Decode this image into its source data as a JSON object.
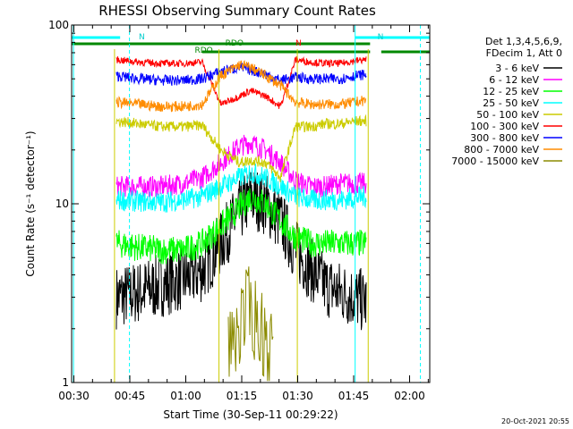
{
  "chart_data": {
    "type": "line",
    "title": "RHESSI Observing Summary Count Rates",
    "xlabel": "Start Time (30-Sep-11 00:29:22)",
    "ylabel": "Count Rate (s⁻¹ detector⁻¹)",
    "y_scale": "log",
    "ylim": [
      1,
      100
    ],
    "xlim_minutes_after_0029": [
      0,
      96
    ],
    "x_ticks": [
      {
        "label": "00:30",
        "t": 0.6
      },
      {
        "label": "00:45",
        "t": 15.6
      },
      {
        "label": "01:00",
        "t": 30.6
      },
      {
        "label": "01:15",
        "t": 45.6
      },
      {
        "label": "01:30",
        "t": 60.6
      },
      {
        "label": "01:45",
        "t": 75.6
      },
      {
        "label": "02:00",
        "t": 90.6
      }
    ],
    "y_ticks": [
      {
        "label": "1",
        "value": 1
      },
      {
        "label": "10",
        "value": 10
      },
      {
        "label": "100",
        "value": 100
      }
    ],
    "legend": {
      "header": [
        "Det 1,3,4,5,6,9,",
        "FDecim 1, Att 0"
      ],
      "position": "right"
    },
    "series": [
      {
        "name": "3 - 6 keV",
        "color": "#000000",
        "x": [
          12,
          18,
          24,
          30,
          35,
          40,
          45,
          48,
          52,
          56,
          60,
          64,
          68,
          72,
          76,
          79
        ],
        "y": [
          3,
          3.2,
          3.5,
          3.8,
          4.2,
          6,
          9,
          11,
          10,
          8,
          5.5,
          4.3,
          3.5,
          3.2,
          3,
          2.8
        ]
      },
      {
        "name": "6 - 12 keV",
        "color": "#ff00ff",
        "x": [
          12,
          18,
          24,
          30,
          35,
          40,
          45,
          48,
          52,
          56,
          60,
          64,
          68,
          72,
          76,
          79
        ],
        "y": [
          12.5,
          12.5,
          12.5,
          13,
          14,
          17,
          21,
          22,
          20,
          17,
          13.5,
          12.5,
          12.5,
          13,
          13,
          13
        ]
      },
      {
        "name": "12 - 25 keV",
        "color": "#00ff00",
        "x": [
          12,
          18,
          24,
          30,
          35,
          40,
          45,
          48,
          52,
          56,
          60,
          64,
          68,
          72,
          76,
          79
        ],
        "y": [
          6,
          5.7,
          5.5,
          5.5,
          6,
          7.5,
          9.5,
          11,
          10,
          8,
          6.5,
          6,
          6,
          6,
          6,
          6
        ]
      },
      {
        "name": "25 - 50 keV",
        "color": "#00ffff",
        "x": [
          12,
          18,
          24,
          30,
          35,
          40,
          45,
          48,
          52,
          56,
          60,
          64,
          68,
          72,
          76,
          79
        ],
        "y": [
          10.5,
          10.3,
          10.2,
          10.5,
          11,
          12.5,
          14,
          15,
          14,
          12.5,
          11,
          10.5,
          10.5,
          10.5,
          10.8,
          11
        ]
      },
      {
        "name": "50 - 100 keV",
        "color": "#cccc00",
        "x": [
          12,
          18,
          24,
          30,
          35,
          40,
          45,
          48,
          52,
          56,
          60,
          64,
          68,
          72,
          76,
          79
        ],
        "y": [
          29,
          28,
          27,
          27,
          27.5,
          20,
          17,
          17.5,
          17,
          14,
          27,
          27,
          28,
          28,
          29,
          29
        ]
      },
      {
        "name": "100 - 300 keV",
        "color": "#ff0000",
        "x": [
          12,
          18,
          24,
          30,
          35,
          40,
          45,
          48,
          52,
          56,
          60,
          64,
          68,
          72,
          76,
          79
        ],
        "y": [
          64,
          62,
          61,
          61,
          62,
          36,
          40,
          43,
          40,
          35,
          64,
          62,
          61,
          61,
          63,
          64
        ]
      },
      {
        "name": "300 - 800 keV",
        "color": "#0000ff",
        "x": [
          12,
          18,
          24,
          30,
          35,
          40,
          45,
          48,
          52,
          56,
          60,
          64,
          68,
          72,
          76,
          79
        ],
        "y": [
          52,
          50,
          49,
          49,
          50,
          55,
          58,
          56,
          53,
          49,
          51,
          50,
          50,
          50,
          52,
          53
        ]
      },
      {
        "name": "800 - 7000 keV",
        "color": "#ff8c00",
        "x": [
          12,
          18,
          24,
          30,
          35,
          40,
          45,
          48,
          52,
          56,
          60,
          64,
          68,
          72,
          76,
          79
        ],
        "y": [
          37,
          36,
          35,
          35,
          36,
          52,
          60,
          58,
          52,
          46,
          37,
          36,
          36,
          36,
          37,
          38
        ]
      },
      {
        "name": "7000 - 15000 keV",
        "color": "#8b8b00",
        "x": [
          42,
          44,
          46,
          48,
          50,
          52,
          54
        ],
        "y": [
          1.6,
          1.9,
          2.3,
          2.6,
          2.1,
          1.8,
          1.5
        ]
      }
    ],
    "annotations": [
      {
        "text": "N",
        "color": "#00cccc"
      },
      {
        "text": "N",
        "color": "#00cccc"
      },
      {
        "text": "RDO",
        "color": "#008800"
      },
      {
        "text": "RDO",
        "color": "#008800"
      },
      {
        "text": "N",
        "color": "#ff0000"
      }
    ]
  },
  "footer": {
    "timestamp": "20-Oct-2021 20:55"
  }
}
